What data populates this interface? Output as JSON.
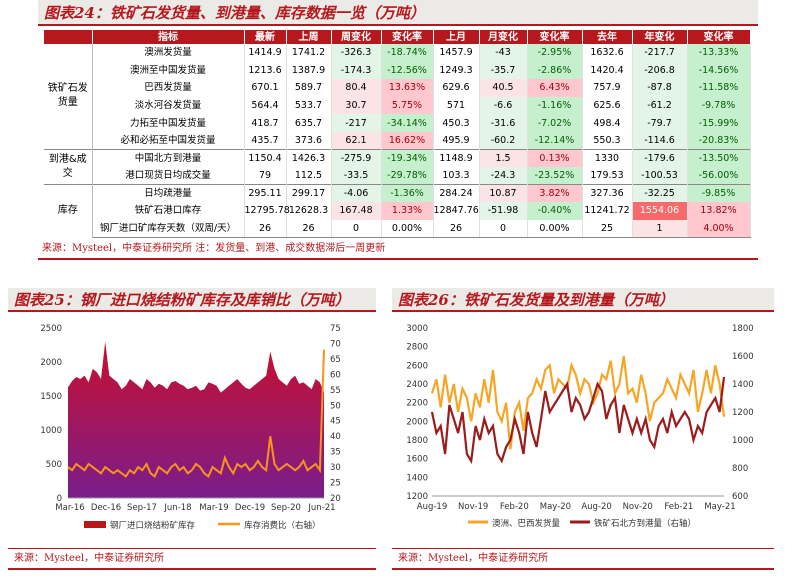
{
  "panel24": {
    "title": "图表24：铁矿石发货量、到港量、库存数据一览（万吨）",
    "headers": [
      "指标",
      "最新",
      "上周",
      "周变化",
      "变化率",
      "上月",
      "月变化",
      "变化率",
      "去年",
      "年变化",
      "变化率"
    ],
    "groups": [
      "铁矿石发货量",
      "到港&成交",
      "库存"
    ],
    "rows": [
      [
        "澳洲发货量",
        "1414.9",
        "1741.2",
        "-326.3",
        "-18.74%",
        "1457.9",
        "-43",
        "-2.95%",
        "1632.6",
        "-217.7",
        "-13.33%"
      ],
      [
        "澳洲至中国发货量",
        "1213.6",
        "1387.9",
        "-174.3",
        "-12.56%",
        "1249.3",
        "-35.7",
        "-2.86%",
        "1420.4",
        "-206.8",
        "-14.56%"
      ],
      [
        "巴西发货量",
        "670.1",
        "589.7",
        "80.4",
        "13.63%",
        "629.6",
        "40.5",
        "6.43%",
        "757.9",
        "-87.8",
        "-11.58%"
      ],
      [
        "淡水河谷发货量",
        "564.4",
        "533.7",
        "30.7",
        "5.75%",
        "571",
        "-6.6",
        "-1.16%",
        "625.6",
        "-61.2",
        "-9.78%"
      ],
      [
        "力拓至中国发货量",
        "418.7",
        "635.7",
        "-217",
        "-34.14%",
        "450.3",
        "-31.6",
        "-7.02%",
        "498.4",
        "-79.7",
        "-15.99%"
      ],
      [
        "必和必拓至中国发货量",
        "435.7",
        "373.6",
        "62.1",
        "16.62%",
        "495.9",
        "-60.2",
        "-12.14%",
        "550.3",
        "-114.6",
        "-20.83%"
      ],
      [
        "中国北方到港量",
        "1150.4",
        "1426.3",
        "-275.9",
        "-19.34%",
        "1148.9",
        "1.5",
        "0.13%",
        "1330",
        "-179.6",
        "-13.50%"
      ],
      [
        "港口现货日均成交量",
        "79",
        "112.5",
        "-33.5",
        "-29.78%",
        "103.3",
        "-24.3",
        "-23.52%",
        "179.53",
        "-100.53",
        "-56.00%"
      ],
      [
        "日均疏港量",
        "295.11",
        "299.17",
        "-4.06",
        "-1.36%",
        "284.24",
        "10.87",
        "3.82%",
        "327.36",
        "-32.25",
        "-9.85%"
      ],
      [
        "铁矿石港口库存",
        "12795.78",
        "12628.3",
        "167.48",
        "1.33%",
        "12847.76",
        "-51.98",
        "-0.40%",
        "11241.72",
        "1554.06",
        "13.82%"
      ],
      [
        "钢厂进口矿库存天数（双周/天）",
        "26",
        "26",
        "0",
        "0.00%",
        "26",
        "0",
        "0.00%",
        "25",
        "1",
        "4.00%"
      ]
    ],
    "source": "来源：Mysteel，中泰证券研究所 注：发货量、到港、成交数据滞后一周更新"
  },
  "panel25": {
    "title": "图表25：钢厂进口烧结粉矿库存及库销比（万吨）",
    "source": "来源：Mysteel，中泰证券研究所"
  },
  "panel26": {
    "title": "图表26：铁矿石发货量及到港量（万吨）",
    "source": "来源：Mysteel，中泰证券研究所"
  },
  "chart_data": [
    {
      "type": "area",
      "x_ticks": [
        "Mar-16",
        "Dec-16",
        "Sep-17",
        "Jun-18",
        "Mar-19",
        "Dec-19",
        "Sep-20",
        "Jun-21"
      ],
      "ylim": [
        0,
        2500
      ],
      "y2lim": [
        20,
        75
      ],
      "series": [
        {
          "name": "钢厂进口烧结粉矿库存",
          "axis": "left",
          "type": "area",
          "color": "#b5191e",
          "values": [
            1630,
            1720,
            1780,
            1750,
            1800,
            1700,
            1900,
            1850,
            1750,
            2300,
            1800,
            1750,
            1700,
            1600,
            1650,
            1750,
            1700,
            1650,
            1600,
            1750,
            1700,
            1620,
            1680,
            1650,
            1600,
            1700,
            1720,
            1680,
            1650,
            1600,
            1620,
            1650,
            1580,
            1600,
            1700,
            1680,
            1650,
            1550,
            1600,
            1650,
            1700,
            1750,
            1680,
            1620,
            1600,
            1650,
            1700,
            1750,
            1800,
            2150,
            1900,
            1750,
            1700,
            1650,
            1750,
            1800,
            1680,
            1700,
            1650,
            1600,
            1750,
            1700,
            1550
          ]
        },
        {
          "name": "库存消费比（右轴）",
          "axis": "right",
          "type": "line",
          "color": "#f7941d",
          "values": [
            30,
            29,
            31,
            30,
            29,
            31,
            30,
            29,
            28,
            30,
            29,
            28,
            29,
            28,
            27,
            29,
            28,
            30,
            29,
            31,
            28,
            27,
            30,
            29,
            28,
            30,
            31,
            29,
            30,
            28,
            29,
            31,
            30,
            28,
            27,
            30,
            29,
            28,
            33,
            30,
            28,
            31,
            30,
            31,
            29,
            30,
            32,
            30,
            29,
            40,
            31,
            29,
            30,
            31,
            30,
            29,
            30,
            32,
            29,
            30,
            31,
            29,
            68
          ]
        }
      ]
    },
    {
      "type": "line",
      "x_ticks": [
        "Aug-19",
        "Nov-19",
        "Feb-20",
        "May-20",
        "Aug-20",
        "Nov-20",
        "Feb-21",
        "May-21"
      ],
      "ylim": [
        1200,
        3000
      ],
      "y2lim": [
        600,
        1800
      ],
      "series": [
        {
          "name": "澳洲、巴西发货量",
          "axis": "left",
          "color": "#f7a526",
          "values": [
            2300,
            2450,
            2150,
            2500,
            2200,
            2400,
            2100,
            2350,
            2250,
            2000,
            2300,
            2150,
            2450,
            2200,
            2550,
            2100,
            2000,
            2200,
            1700,
            2100,
            2200,
            1900,
            2250,
            2300,
            2450,
            2350,
            2550,
            2600,
            2300,
            2450,
            2400,
            2350,
            2600,
            2500,
            2300,
            2450,
            2400,
            2200,
            2300,
            2500,
            2450,
            2650,
            2300,
            2400,
            2700,
            2300,
            2350,
            2200,
            2500,
            2300,
            2000,
            2200,
            2250,
            2300,
            2450,
            2350,
            2250,
            2500,
            2400,
            2300,
            2550,
            2100,
            2300,
            2550,
            2300,
            2600,
            2400,
            2050
          ]
        },
        {
          "name": "铁矿石北方到港量（右轴）",
          "axis": "right",
          "color": "#9b1c1c",
          "values": [
            1200,
            1050,
            1100,
            900,
            1250,
            1150,
            1050,
            1200,
            900,
            850,
            1100,
            1000,
            1150,
            1050,
            1100,
            900,
            850,
            950,
            1000,
            1150,
            1050,
            900,
            1200,
            1050,
            950,
            1150,
            1350,
            1200,
            1250,
            1300,
            1350,
            1400,
            1200,
            1300,
            1250,
            1150,
            1200,
            1300,
            1400,
            1350,
            1150,
            1250,
            1300,
            1050,
            1250,
            1150,
            1050,
            1150,
            1050,
            1150,
            1000,
            950,
            1100,
            1150,
            1050,
            1200,
            1100,
            1150,
            1200,
            1150,
            1000,
            1100,
            1050,
            1200,
            1250,
            1300,
            1200,
            1450
          ]
        }
      ]
    }
  ]
}
